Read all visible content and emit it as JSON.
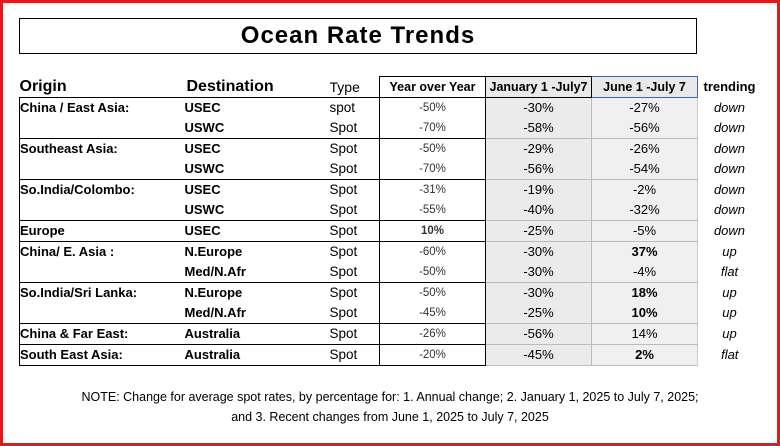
{
  "title": "Ocean Rate Trends",
  "headers": {
    "origin": "Origin",
    "destination": "Destination",
    "type": "Type",
    "yoy": "Year over Year",
    "jan": "January 1 -July7",
    "jun": "June 1 -July 7",
    "trending": "trending"
  },
  "rows": [
    {
      "origin": "China / East Asia:",
      "dest": "USEC",
      "type": "spot",
      "yoy": "-50%",
      "jan": "-30%",
      "jun": "-27%",
      "trend": "down"
    },
    {
      "origin": "",
      "dest": "USWC",
      "type": "Spot",
      "yoy": "-70%",
      "jan": "-58%",
      "jun": "-56%",
      "trend": "down"
    },
    {
      "origin": "Southeast Asia:",
      "dest": "USEC",
      "type": "Spot",
      "yoy": "-50%",
      "jan": "-29%",
      "jun": "-26%",
      "trend": "down"
    },
    {
      "origin": "",
      "dest": "USWC",
      "type": "Spot",
      "yoy": "-70%",
      "jan": "-56%",
      "jun": "-54%",
      "trend": "down"
    },
    {
      "origin": "So.India/Colombo:",
      "dest": "USEC",
      "type": "Spot",
      "yoy": "-31%",
      "jan": "-19%",
      "jun": "-2%",
      "trend": "down"
    },
    {
      "origin": "",
      "dest": "USWC",
      "type": "Spot",
      "yoy": "-55%",
      "jan": "-40%",
      "jun": "-32%",
      "trend": "down"
    },
    {
      "origin": "Europe",
      "dest": "USEC",
      "type": "Spot",
      "yoy": "10%",
      "jan": "-25%",
      "jun": "-5%",
      "trend": "down"
    },
    {
      "origin": "China/ E. Asia :",
      "dest": "N.Europe",
      "type": "Spot",
      "yoy": "-60%",
      "jan": "-30%",
      "jun": "37%",
      "trend": "up"
    },
    {
      "origin": "",
      "dest": "Med/N.Afr",
      "type": "Spot",
      "yoy": "-50%",
      "jan": "-30%",
      "jun": "-4%",
      "trend": "flat"
    },
    {
      "origin": "So.India/Sri Lanka:",
      "dest": "N.Europe",
      "type": "Spot",
      "yoy": "-50%",
      "jan": "-30%",
      "jun": "18%",
      "trend": "up"
    },
    {
      "origin": "",
      "dest": "Med/N.Afr",
      "type": "Spot",
      "yoy": "-45%",
      "jan": "-25%",
      "jun": "10%",
      "trend": "up"
    },
    {
      "origin": "China & Far East:",
      "dest": "Australia",
      "type": "Spot",
      "yoy": "-26%",
      "jan": "-56%",
      "jun": "14%",
      "trend": "up"
    },
    {
      "origin": "South East Asia:",
      "dest": "Australia",
      "type": "Spot",
      "yoy": "-20%",
      "jan": "-45%",
      "jun": "2%",
      "trend": "flat"
    }
  ],
  "note": {
    "line1": "NOTE: Change for average spot rates, by percentage for:  1.  Annual change;  2.  January 1, 2025 to July 7, 2025;",
    "line2": "and  3. Recent changes from June 1, 2025 to July 7, 2025"
  }
}
